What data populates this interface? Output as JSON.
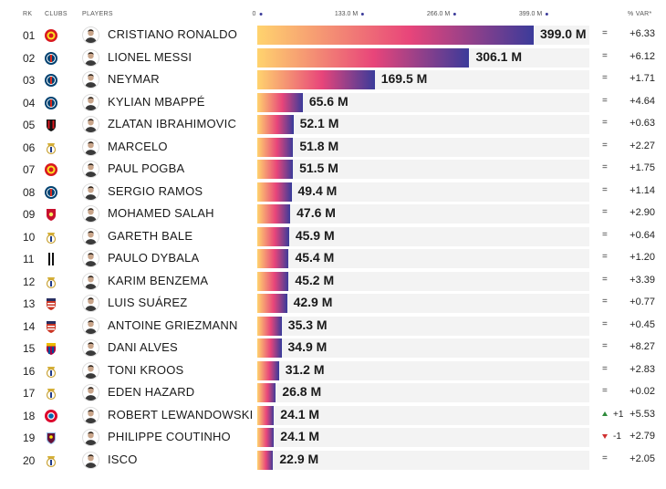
{
  "header": {
    "rk": "RK",
    "clubs": "CLUBS",
    "players": "PLAYERS",
    "var": "% VAR*"
  },
  "colors": {
    "bar_start": "#ffd36e",
    "bar_mid": "#e8457a",
    "bar_end": "#3b3b9a",
    "track": "#f3f3f3",
    "up": "#2e8b3a",
    "down": "#d03030"
  },
  "chart_data": {
    "type": "bar",
    "orientation": "horizontal",
    "xlim": [
      0,
      399
    ],
    "ticks": [
      "0",
      "133.0 M",
      "266.0 M",
      "399.0 M"
    ],
    "tick_values": [
      0,
      133,
      266,
      399
    ],
    "rows": [
      {
        "rank": "01",
        "club": "manchester-united",
        "player": "CRISTIANO RONALDO",
        "value": 399.0,
        "label": "399.0 M",
        "move": "=",
        "var": "+6.33"
      },
      {
        "rank": "02",
        "club": "psg",
        "player": "LIONEL MESSI",
        "value": 306.1,
        "label": "306.1 M",
        "move": "=",
        "var": "+6.12"
      },
      {
        "rank": "03",
        "club": "psg",
        "player": "NEYMAR",
        "value": 169.5,
        "label": "169.5 M",
        "move": "=",
        "var": "+1.71"
      },
      {
        "rank": "04",
        "club": "psg",
        "player": "KYLIAN MBAPPÉ",
        "value": 65.6,
        "label": "65.6 M",
        "move": "=",
        "var": "+4.64"
      },
      {
        "rank": "05",
        "club": "ac-milan",
        "player": "ZLATAN IBRAHIMOVIC",
        "value": 52.1,
        "label": "52.1 M",
        "move": "=",
        "var": "+0.63"
      },
      {
        "rank": "06",
        "club": "real-madrid",
        "player": "MARCELO",
        "value": 51.8,
        "label": "51.8 M",
        "move": "=",
        "var": "+2.27"
      },
      {
        "rank": "07",
        "club": "manchester-united",
        "player": "PAUL POGBA",
        "value": 51.5,
        "label": "51.5 M",
        "move": "=",
        "var": "+1.75"
      },
      {
        "rank": "08",
        "club": "psg",
        "player": "SERGIO RAMOS",
        "value": 49.4,
        "label": "49.4 M",
        "move": "=",
        "var": "+1.14"
      },
      {
        "rank": "09",
        "club": "liverpool",
        "player": "MOHAMED SALAH",
        "value": 47.6,
        "label": "47.6 M",
        "move": "=",
        "var": "+2.90"
      },
      {
        "rank": "10",
        "club": "real-madrid",
        "player": "GARETH BALE",
        "value": 45.9,
        "label": "45.9 M",
        "move": "=",
        "var": "+0.64"
      },
      {
        "rank": "11",
        "club": "juventus",
        "player": "PAULO DYBALA",
        "value": 45.4,
        "label": "45.4 M",
        "move": "=",
        "var": "+1.20"
      },
      {
        "rank": "12",
        "club": "real-madrid",
        "player": "KARIM BENZEMA",
        "value": 45.2,
        "label": "45.2 M",
        "move": "=",
        "var": "+3.39"
      },
      {
        "rank": "13",
        "club": "atletico-madrid",
        "player": "LUIS SUÁREZ",
        "value": 42.9,
        "label": "42.9 M",
        "move": "=",
        "var": "+0.77"
      },
      {
        "rank": "14",
        "club": "atletico-madrid",
        "player": "ANTOINE GRIEZMANN",
        "value": 35.3,
        "label": "35.3 M",
        "move": "=",
        "var": "+0.45"
      },
      {
        "rank": "15",
        "club": "barcelona",
        "player": "DANI ALVES",
        "value": 34.9,
        "label": "34.9 M",
        "move": "=",
        "var": "+8.27"
      },
      {
        "rank": "16",
        "club": "real-madrid",
        "player": "TONI KROOS",
        "value": 31.2,
        "label": "31.2 M",
        "move": "=",
        "var": "+2.83"
      },
      {
        "rank": "17",
        "club": "real-madrid",
        "player": "EDEN HAZARD",
        "value": 26.8,
        "label": "26.8 M",
        "move": "=",
        "var": "+0.02"
      },
      {
        "rank": "18",
        "club": "bayern-munich",
        "player": "ROBERT LEWANDOWSKI",
        "value": 24.1,
        "label": "24.1 M",
        "move": "+1",
        "dir": "up",
        "var": "+5.53"
      },
      {
        "rank": "19",
        "club": "aston-villa",
        "player": "PHILIPPE COUTINHO",
        "value": 24.1,
        "label": "24.1 M",
        "move": "-1",
        "dir": "down",
        "var": "+2.79"
      },
      {
        "rank": "20",
        "club": "real-madrid",
        "player": "ISCO",
        "value": 22.9,
        "label": "22.9 M",
        "move": "=",
        "var": "+2.05"
      }
    ]
  }
}
